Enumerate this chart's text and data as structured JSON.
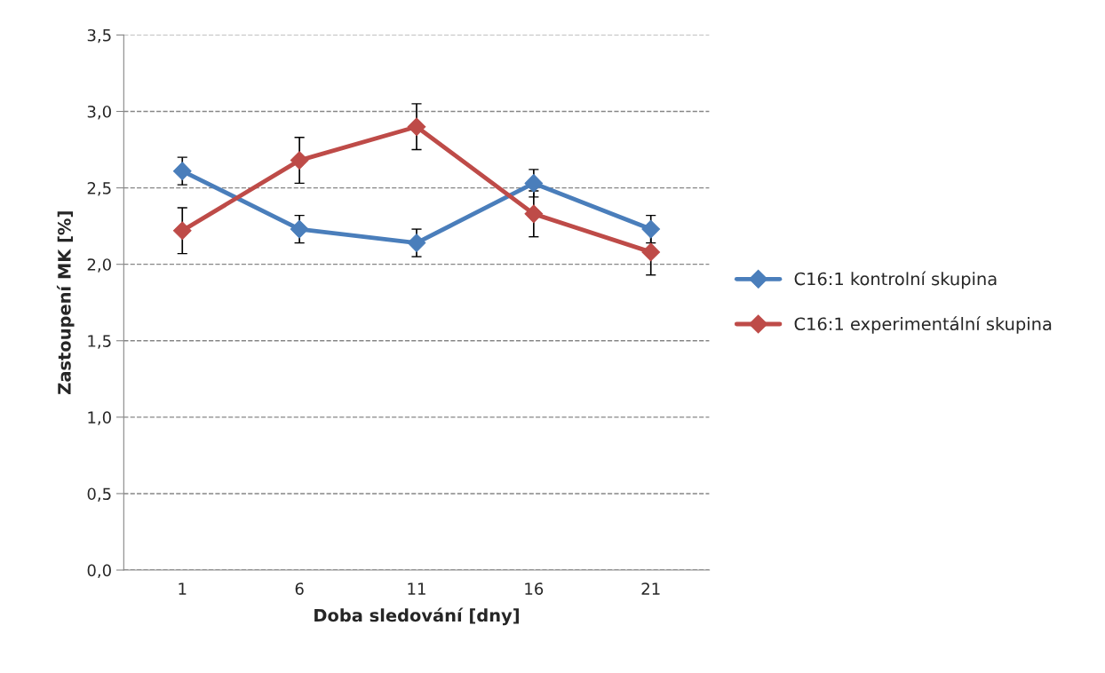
{
  "chart_data": {
    "type": "line",
    "xlabel": "Doba sledování [dny]",
    "ylabel": "Zastoupení MK [%]",
    "categories": [
      "1",
      "6",
      "11",
      "16",
      "21"
    ],
    "series": [
      {
        "name": "C16:1 kontrolní skupina",
        "color": "#4a7ebb",
        "values": [
          2.61,
          2.23,
          2.14,
          2.53,
          2.23
        ],
        "errors": [
          0.09,
          0.09,
          0.09,
          0.09,
          0.09
        ]
      },
      {
        "name": "C16:1 experimentální skupina",
        "color": "#be4b48",
        "values": [
          2.22,
          2.68,
          2.9,
          2.33,
          2.08
        ],
        "errors": [
          0.15,
          0.15,
          0.15,
          0.15,
          0.15
        ]
      }
    ],
    "ylim": [
      0,
      3.5
    ],
    "yticks": [
      {
        "value": 0,
        "label": "0,0"
      },
      {
        "value": 0.5,
        "label": "0,5"
      },
      {
        "value": 1,
        "label": "1,0"
      },
      {
        "value": 1.5,
        "label": "1,5"
      },
      {
        "value": 2,
        "label": "2,0"
      },
      {
        "value": 2.5,
        "label": "2,5"
      },
      {
        "value": 3,
        "label": "3,0"
      },
      {
        "value": 3.5,
        "label": "3,5"
      }
    ],
    "grid": "y",
    "legend": "right",
    "marker": "diamond",
    "line_style": "solid"
  }
}
